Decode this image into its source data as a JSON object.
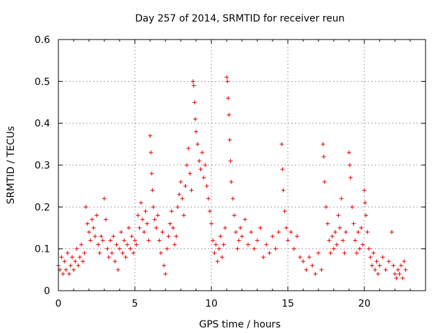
{
  "chart_data": {
    "type": "scatter",
    "title": "Day 257 of 2014, SRMTID for receiver reun",
    "xlabel": "GPS time / hours",
    "ylabel": "SRMTID / TECUs",
    "xlim": [
      0,
      24
    ],
    "ylim": [
      0,
      0.6
    ],
    "grid": true,
    "x_ticks": [
      0,
      5,
      10,
      15,
      20
    ],
    "x_tick_labels": [
      "0",
      "5",
      "10",
      "15",
      "20"
    ],
    "y_ticks": [
      0,
      0.1,
      0.2,
      0.3,
      0.4,
      0.5,
      0.6
    ],
    "y_tick_labels": [
      "0",
      "0.1",
      "0.2",
      "0.3",
      "0.4",
      "0.5",
      "0.6"
    ],
    "marker": "+",
    "color": "#e00000",
    "series": [
      {
        "name": "SRMTID",
        "points": [
          [
            0.0,
            0.06
          ],
          [
            0.1,
            0.05
          ],
          [
            0.2,
            0.08
          ],
          [
            0.3,
            0.04
          ],
          [
            0.4,
            0.07
          ],
          [
            0.5,
            0.05
          ],
          [
            0.6,
            0.09
          ],
          [
            0.7,
            0.04
          ],
          [
            0.8,
            0.06
          ],
          [
            0.9,
            0.08
          ],
          [
            1.0,
            0.05
          ],
          [
            1.1,
            0.07
          ],
          [
            1.2,
            0.1
          ],
          [
            1.3,
            0.06
          ],
          [
            1.4,
            0.08
          ],
          [
            1.5,
            0.11
          ],
          [
            1.6,
            0.07
          ],
          [
            1.7,
            0.09
          ],
          [
            1.8,
            0.2
          ],
          [
            1.9,
            0.16
          ],
          [
            2.0,
            0.14
          ],
          [
            2.1,
            0.12
          ],
          [
            2.2,
            0.17
          ],
          [
            2.3,
            0.15
          ],
          [
            2.4,
            0.13
          ],
          [
            2.5,
            0.18
          ],
          [
            2.6,
            0.11
          ],
          [
            2.7,
            0.09
          ],
          [
            2.8,
            0.13
          ],
          [
            2.9,
            0.12
          ],
          [
            3.0,
            0.22
          ],
          [
            3.1,
            0.17
          ],
          [
            3.2,
            0.1
          ],
          [
            3.3,
            0.08
          ],
          [
            3.4,
            0.12
          ],
          [
            3.5,
            0.09
          ],
          [
            3.6,
            0.13
          ],
          [
            3.7,
            0.07
          ],
          [
            3.8,
            0.11
          ],
          [
            3.9,
            0.05
          ],
          [
            4.0,
            0.1
          ],
          [
            4.1,
            0.14
          ],
          [
            4.2,
            0.09
          ],
          [
            4.3,
            0.12
          ],
          [
            4.4,
            0.08
          ],
          [
            4.5,
            0.11
          ],
          [
            4.6,
            0.15
          ],
          [
            4.7,
            0.1
          ],
          [
            4.8,
            0.13
          ],
          [
            4.9,
            0.09
          ],
          [
            5.0,
            0.12
          ],
          [
            5.1,
            0.11
          ],
          [
            5.2,
            0.18
          ],
          [
            5.3,
            0.15
          ],
          [
            5.4,
            0.21
          ],
          [
            5.5,
            0.17
          ],
          [
            5.6,
            0.14
          ],
          [
            5.7,
            0.19
          ],
          [
            5.8,
            0.16
          ],
          [
            5.9,
            0.12
          ],
          [
            6.0,
            0.37
          ],
          [
            6.05,
            0.33
          ],
          [
            6.1,
            0.28
          ],
          [
            6.15,
            0.24
          ],
          [
            6.2,
            0.2
          ],
          [
            6.3,
            0.17
          ],
          [
            6.4,
            0.15
          ],
          [
            6.5,
            0.18
          ],
          [
            6.6,
            0.12
          ],
          [
            6.7,
            0.09
          ],
          [
            6.8,
            0.14
          ],
          [
            6.9,
            0.06
          ],
          [
            7.0,
            0.04
          ],
          [
            7.1,
            0.1
          ],
          [
            7.2,
            0.13
          ],
          [
            7.3,
            0.16
          ],
          [
            7.4,
            0.19
          ],
          [
            7.5,
            0.15
          ],
          [
            7.6,
            0.11
          ],
          [
            7.7,
            0.13
          ],
          [
            7.8,
            0.2
          ],
          [
            7.9,
            0.23
          ],
          [
            8.0,
            0.26
          ],
          [
            8.1,
            0.22
          ],
          [
            8.2,
            0.18
          ],
          [
            8.3,
            0.25
          ],
          [
            8.4,
            0.3
          ],
          [
            8.5,
            0.34
          ],
          [
            8.6,
            0.28
          ],
          [
            8.7,
            0.24
          ],
          [
            8.8,
            0.5
          ],
          [
            8.85,
            0.49
          ],
          [
            8.9,
            0.45
          ],
          [
            8.95,
            0.41
          ],
          [
            9.0,
            0.38
          ],
          [
            9.1,
            0.35
          ],
          [
            9.2,
            0.31
          ],
          [
            9.3,
            0.29
          ],
          [
            9.4,
            0.33
          ],
          [
            9.5,
            0.27
          ],
          [
            9.6,
            0.3
          ],
          [
            9.7,
            0.25
          ],
          [
            9.8,
            0.22
          ],
          [
            9.9,
            0.19
          ],
          [
            10.0,
            0.16
          ],
          [
            10.1,
            0.12
          ],
          [
            10.2,
            0.09
          ],
          [
            10.3,
            0.11
          ],
          [
            10.4,
            0.07
          ],
          [
            10.5,
            0.1
          ],
          [
            10.6,
            0.13
          ],
          [
            10.7,
            0.08
          ],
          [
            10.8,
            0.11
          ],
          [
            10.9,
            0.15
          ],
          [
            11.0,
            0.51
          ],
          [
            11.05,
            0.5
          ],
          [
            11.1,
            0.46
          ],
          [
            11.15,
            0.42
          ],
          [
            11.2,
            0.36
          ],
          [
            11.25,
            0.31
          ],
          [
            11.3,
            0.26
          ],
          [
            11.4,
            0.22
          ],
          [
            11.5,
            0.18
          ],
          [
            11.6,
            0.14
          ],
          [
            11.7,
            0.1
          ],
          [
            11.8,
            0.12
          ],
          [
            11.9,
            0.15
          ],
          [
            12.0,
            0.13
          ],
          [
            12.2,
            0.17
          ],
          [
            12.4,
            0.11
          ],
          [
            12.6,
            0.14
          ],
          [
            12.8,
            0.1
          ],
          [
            13.0,
            0.12
          ],
          [
            13.2,
            0.15
          ],
          [
            13.4,
            0.08
          ],
          [
            13.6,
            0.11
          ],
          [
            13.8,
            0.09
          ],
          [
            14.0,
            0.13
          ],
          [
            14.2,
            0.1
          ],
          [
            14.4,
            0.14
          ],
          [
            14.6,
            0.35
          ],
          [
            14.65,
            0.29
          ],
          [
            14.7,
            0.24
          ],
          [
            14.8,
            0.19
          ],
          [
            14.9,
            0.15
          ],
          [
            15.0,
            0.12
          ],
          [
            15.2,
            0.14
          ],
          [
            15.4,
            0.1
          ],
          [
            15.6,
            0.13
          ],
          [
            15.8,
            0.08
          ],
          [
            16.0,
            0.07
          ],
          [
            16.2,
            0.05
          ],
          [
            16.4,
            0.08
          ],
          [
            16.6,
            0.06
          ],
          [
            16.8,
            0.04
          ],
          [
            17.0,
            0.09
          ],
          [
            17.2,
            0.05
          ],
          [
            17.3,
            0.35
          ],
          [
            17.35,
            0.32
          ],
          [
            17.4,
            0.26
          ],
          [
            17.5,
            0.2
          ],
          [
            17.6,
            0.16
          ],
          [
            17.7,
            0.12
          ],
          [
            17.8,
            0.09
          ],
          [
            17.9,
            0.13
          ],
          [
            18.0,
            0.1
          ],
          [
            18.1,
            0.14
          ],
          [
            18.2,
            0.11
          ],
          [
            18.3,
            0.18
          ],
          [
            18.4,
            0.15
          ],
          [
            18.5,
            0.22
          ],
          [
            18.6,
            0.12
          ],
          [
            18.7,
            0.09
          ],
          [
            18.8,
            0.14
          ],
          [
            19.0,
            0.33
          ],
          [
            19.05,
            0.3
          ],
          [
            19.1,
            0.27
          ],
          [
            19.2,
            0.2
          ],
          [
            19.3,
            0.16
          ],
          [
            19.4,
            0.12
          ],
          [
            19.5,
            0.09
          ],
          [
            19.6,
            0.14
          ],
          [
            19.7,
            0.1
          ],
          [
            19.8,
            0.15
          ],
          [
            19.9,
            0.11
          ],
          [
            20.0,
            0.24
          ],
          [
            20.05,
            0.21
          ],
          [
            20.1,
            0.18
          ],
          [
            20.2,
            0.14
          ],
          [
            20.3,
            0.1
          ],
          [
            20.4,
            0.08
          ],
          [
            20.5,
            0.06
          ],
          [
            20.6,
            0.09
          ],
          [
            20.7,
            0.05
          ],
          [
            20.8,
            0.07
          ],
          [
            20.9,
            0.04
          ],
          [
            21.0,
            0.06
          ],
          [
            21.2,
            0.08
          ],
          [
            21.4,
            0.05
          ],
          [
            21.6,
            0.07
          ],
          [
            21.8,
            0.14
          ],
          [
            21.9,
            0.06
          ],
          [
            22.0,
            0.04
          ],
          [
            22.1,
            0.03
          ],
          [
            22.2,
            0.05
          ],
          [
            22.3,
            0.04
          ],
          [
            22.4,
            0.06
          ],
          [
            22.5,
            0.03
          ],
          [
            22.6,
            0.07
          ],
          [
            22.7,
            0.05
          ]
        ]
      }
    ]
  }
}
